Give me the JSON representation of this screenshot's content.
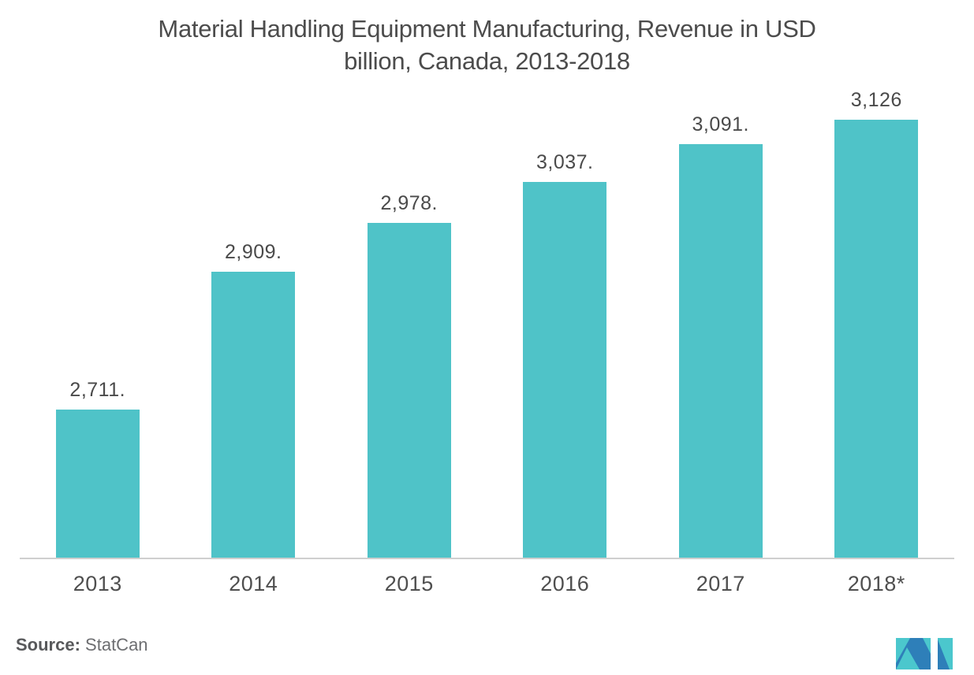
{
  "title_lines": [
    "Material Handling Equipment Manufacturing, Revenue in USD",
    "billion, Canada, 2013-2018"
  ],
  "chart_data": {
    "type": "bar",
    "title": "Material Handling Equipment Manufacturing, Revenue in USD billion, Canada, 2013-2018",
    "categories": [
      "2013",
      "2014",
      "2015",
      "2016",
      "2017",
      "2018*"
    ],
    "values": [
      2711,
      2909,
      2978,
      3037,
      3091,
      3126
    ],
    "value_labels": [
      "2,711.",
      "2,909.",
      "2,978.",
      "3,037.",
      "3,091.",
      "3,126"
    ],
    "xlabel": "",
    "ylabel": "",
    "ylim": [
      2497,
      3126
    ],
    "grid": false,
    "legend_position": "none",
    "bar_color": "#4FC3C8"
  },
  "source": {
    "label": "Source:",
    "value": "StatCan"
  },
  "colors": {
    "bar": "#4FC3C8",
    "axis_line": "#CFCFCF",
    "title_text": "#4C4C4C",
    "value_label_text": "#4A4A4A",
    "year_label_text": "#4F4F4F"
  },
  "logo": {
    "name": "mordor-intelligence-logo",
    "teal": "#4BC7CD",
    "blue": "#2E7FB9"
  }
}
